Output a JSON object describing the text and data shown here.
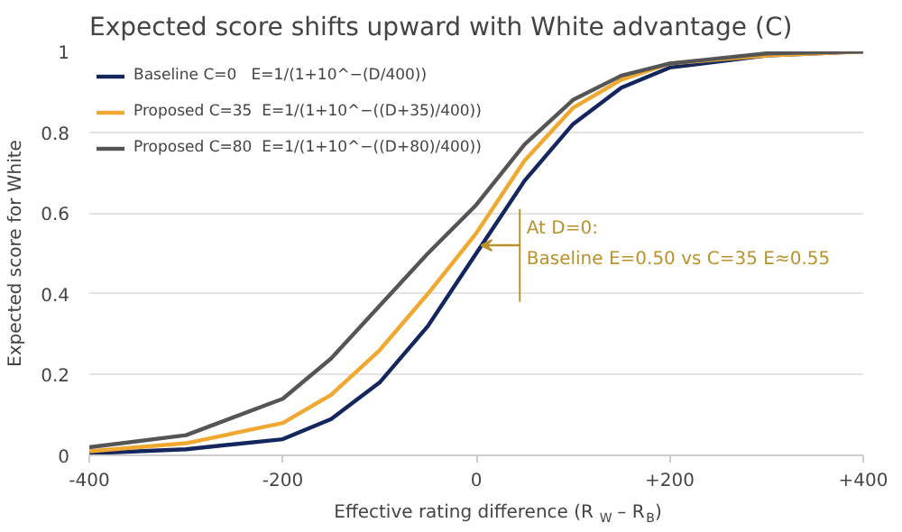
{
  "chart_data": {
    "type": "line",
    "title": "Expected score shifts upward with White advantage (C)",
    "xlabel": "Effective rating difference (R$_{W}$ – R$_{B}$)",
    "ylabel": "Expected score for White",
    "x": [
      -400,
      -300,
      -200,
      -150,
      -100,
      -50,
      0,
      50,
      100,
      150,
      200,
      300,
      400
    ],
    "series": [
      {
        "name": "Baseline C=0   E=1/(1+10^−(D/400))",
        "color": "#14265e",
        "values": [
          0.005,
          0.015,
          0.04,
          0.09,
          0.18,
          0.32,
          0.5,
          0.68,
          0.82,
          0.91,
          0.96,
          0.99,
          1.0
        ]
      },
      {
        "name": "Proposed C=35  E=1/(1+10^−((D+35)/400))",
        "color": "#f0a830",
        "values": [
          0.01,
          0.03,
          0.08,
          0.15,
          0.26,
          0.4,
          0.55,
          0.73,
          0.86,
          0.93,
          0.97,
          0.99,
          1.0
        ]
      },
      {
        "name": "Proposed C=80  E=1/(1+10^−((D+80)/400))",
        "color": "#555555",
        "values": [
          0.02,
          0.05,
          0.14,
          0.24,
          0.37,
          0.5,
          0.62,
          0.77,
          0.88,
          0.94,
          0.97,
          0.995,
          1.0
        ]
      }
    ],
    "xlim": [
      -400,
      400
    ],
    "ylim": [
      0,
      1
    ],
    "xticks": [
      -400,
      -200,
      0,
      {
        "value": 200,
        "label": "+200"
      },
      {
        "value": 400,
        "label": "+400"
      }
    ],
    "yticks": [
      0,
      0.2,
      0.4,
      0.6,
      0.8,
      1
    ],
    "annotations": [
      {
        "text": "At D=0:\nBaseline E=0.50 vs C=35 E≈0.55",
        "x": 0,
        "y": 0.52
      }
    ],
    "grid": "y",
    "legend": "top left",
    "marker": "none",
    "line_style": "solid"
  }
}
